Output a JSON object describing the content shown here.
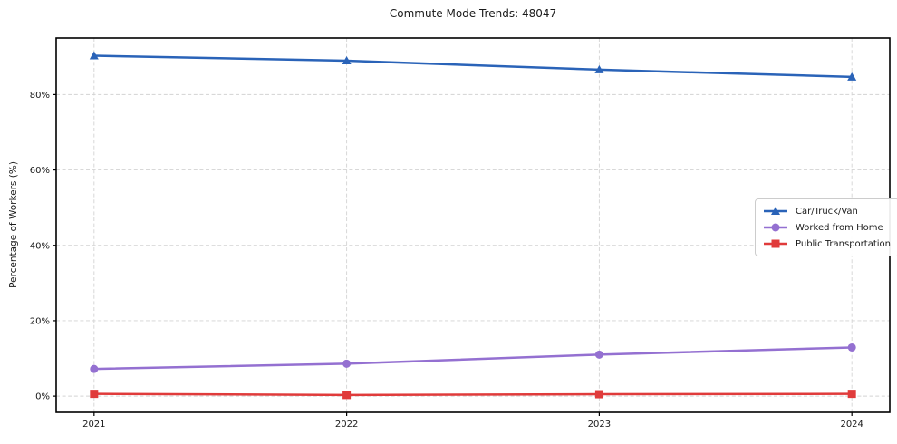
{
  "title": "Commute Mode Trends: 48047",
  "chart_data": {
    "type": "line",
    "title": "Commute Mode Trends: 48047",
    "xlabel": "",
    "ylabel": "Percentage of Workers (%)",
    "x": [
      2021,
      2022,
      2023,
      2024
    ],
    "xtick_labels": [
      "2021",
      "2022",
      "2023",
      "2024"
    ],
    "yticks": [
      0,
      20,
      40,
      60,
      80
    ],
    "ytick_labels": [
      "0%",
      "20%",
      "40%",
      "60%",
      "80%"
    ],
    "xlim": [
      2020.85,
      2024.15
    ],
    "ylim": [
      -4.3,
      95
    ],
    "grid": true,
    "legend_position": "center-right",
    "series": [
      {
        "name": "Car/Truck/Van",
        "color": "#2a63b8",
        "marker": "triangle",
        "values": [
          90.3,
          89.0,
          86.6,
          84.7
        ]
      },
      {
        "name": "Worked from Home",
        "color": "#9470d1",
        "marker": "circle",
        "values": [
          7.2,
          8.6,
          11.0,
          12.9
        ]
      },
      {
        "name": "Public Transportation",
        "color": "#e03b3b",
        "marker": "square",
        "values": [
          0.6,
          0.3,
          0.5,
          0.6
        ]
      }
    ]
  }
}
